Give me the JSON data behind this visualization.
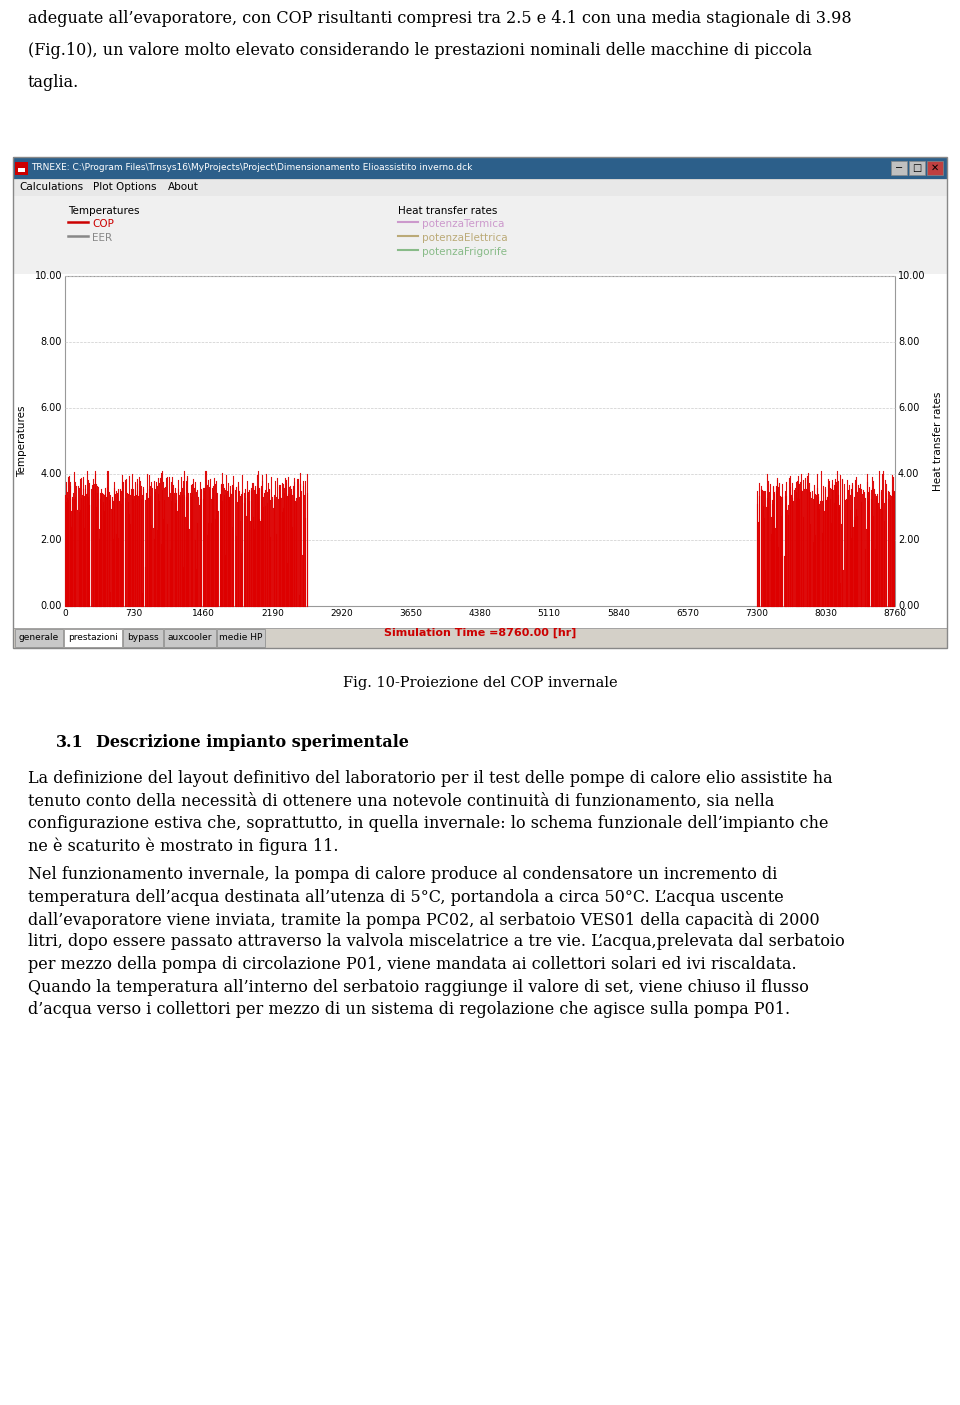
{
  "top_text_line1": "adeguate all’evaporatore, con COP risultanti compresi tra 2.5 e 4.1 con una media stagionale di 3.98",
  "top_text_line2": "(Fig.10), un valore molto elevato considerando le prestazioni nominali delle macchine di piccola",
  "top_text_line3": "taglia.",
  "window_title": "TRNEXE: C:\\Program Files\\Trnsys16\\MyProjects\\Project\\Dimensionamento Elioassistito inverno.dck",
  "menu_items": [
    "Calculations",
    "Plot Options",
    "About"
  ],
  "legend_left_title": "Temperatures",
  "legend_left_items": [
    [
      "COP",
      "#cc0000"
    ],
    [
      "EER",
      "#888888"
    ]
  ],
  "legend_right_title": "Heat transfer rates",
  "legend_right_items": [
    [
      "potenzaTermica",
      "#aaaaaa"
    ],
    [
      "potenzaElettrica",
      "#aaaaaa"
    ],
    [
      "potenzaFrigorife",
      "#aaaaaa"
    ]
  ],
  "y_left_label": "Temperatures",
  "y_right_label": "Heat transfer rates",
  "x_label": "Simulation Time =8760.00 [hr]",
  "x_label_color": "#cc0000",
  "yticks": [
    0.0,
    2.0,
    4.0,
    6.0,
    8.0,
    10.0
  ],
  "xticks": [
    0,
    730,
    1460,
    2190,
    2920,
    3650,
    4380,
    5110,
    5840,
    6570,
    7300,
    8030,
    8760
  ],
  "ylim": [
    0.0,
    10.0
  ],
  "xlim": [
    0,
    8760
  ],
  "tab_labels": [
    "generale",
    "prestazioni",
    "bypass",
    "auxcooler",
    "medie HP"
  ],
  "active_tab": 1,
  "fig_caption": "Fig. 10-Proiezione del COP invernale",
  "section_number": "3.1",
  "section_title": "Descrizione impianto sperimentale",
  "para1_lines": [
    "La definizione del layout definitivo del laboratorio per il test delle pompe di calore elio assistite ha",
    "tenuto conto della necessità di ottenere una notevole continuità di funzionamento, sia nella",
    "configurazione estiva che, soprattutto, in quella invernale: lo schema funzionale dell’impianto che",
    "ne è scaturito è mostrato in figura 11."
  ],
  "para2_lines": [
    "Nel funzionamento invernale, la pompa di calore produce al condensatore un incremento di",
    "temperatura dell’acqua destinata all’utenza di 5°C, portandola a circa 50°C. L’acqua uscente",
    "dall’evaporatore viene inviata, tramite la pompa PC02, al serbatoio VES01 della capacità di 2000",
    "litri, dopo essere passato attraverso la valvola miscelatrice a tre vie. L’acqua,prelevata dal serbatoio",
    "per mezzo della pompa di circolazione P01, viene mandata ai collettori solari ed ivi riscaldata.",
    "Quando la temperatura all’interno del serbatoio raggiunge il valore di set, viene chiuso il flusso",
    "d’acqua verso i collettori per mezzo di un sistema di regolazione che agisce sulla pompa P01."
  ],
  "bg_color": "#ffffff",
  "window_bg": "#f0f0f0",
  "titlebar_bg": "#2c5f8a",
  "titlebar_text_color": "#ffffff"
}
